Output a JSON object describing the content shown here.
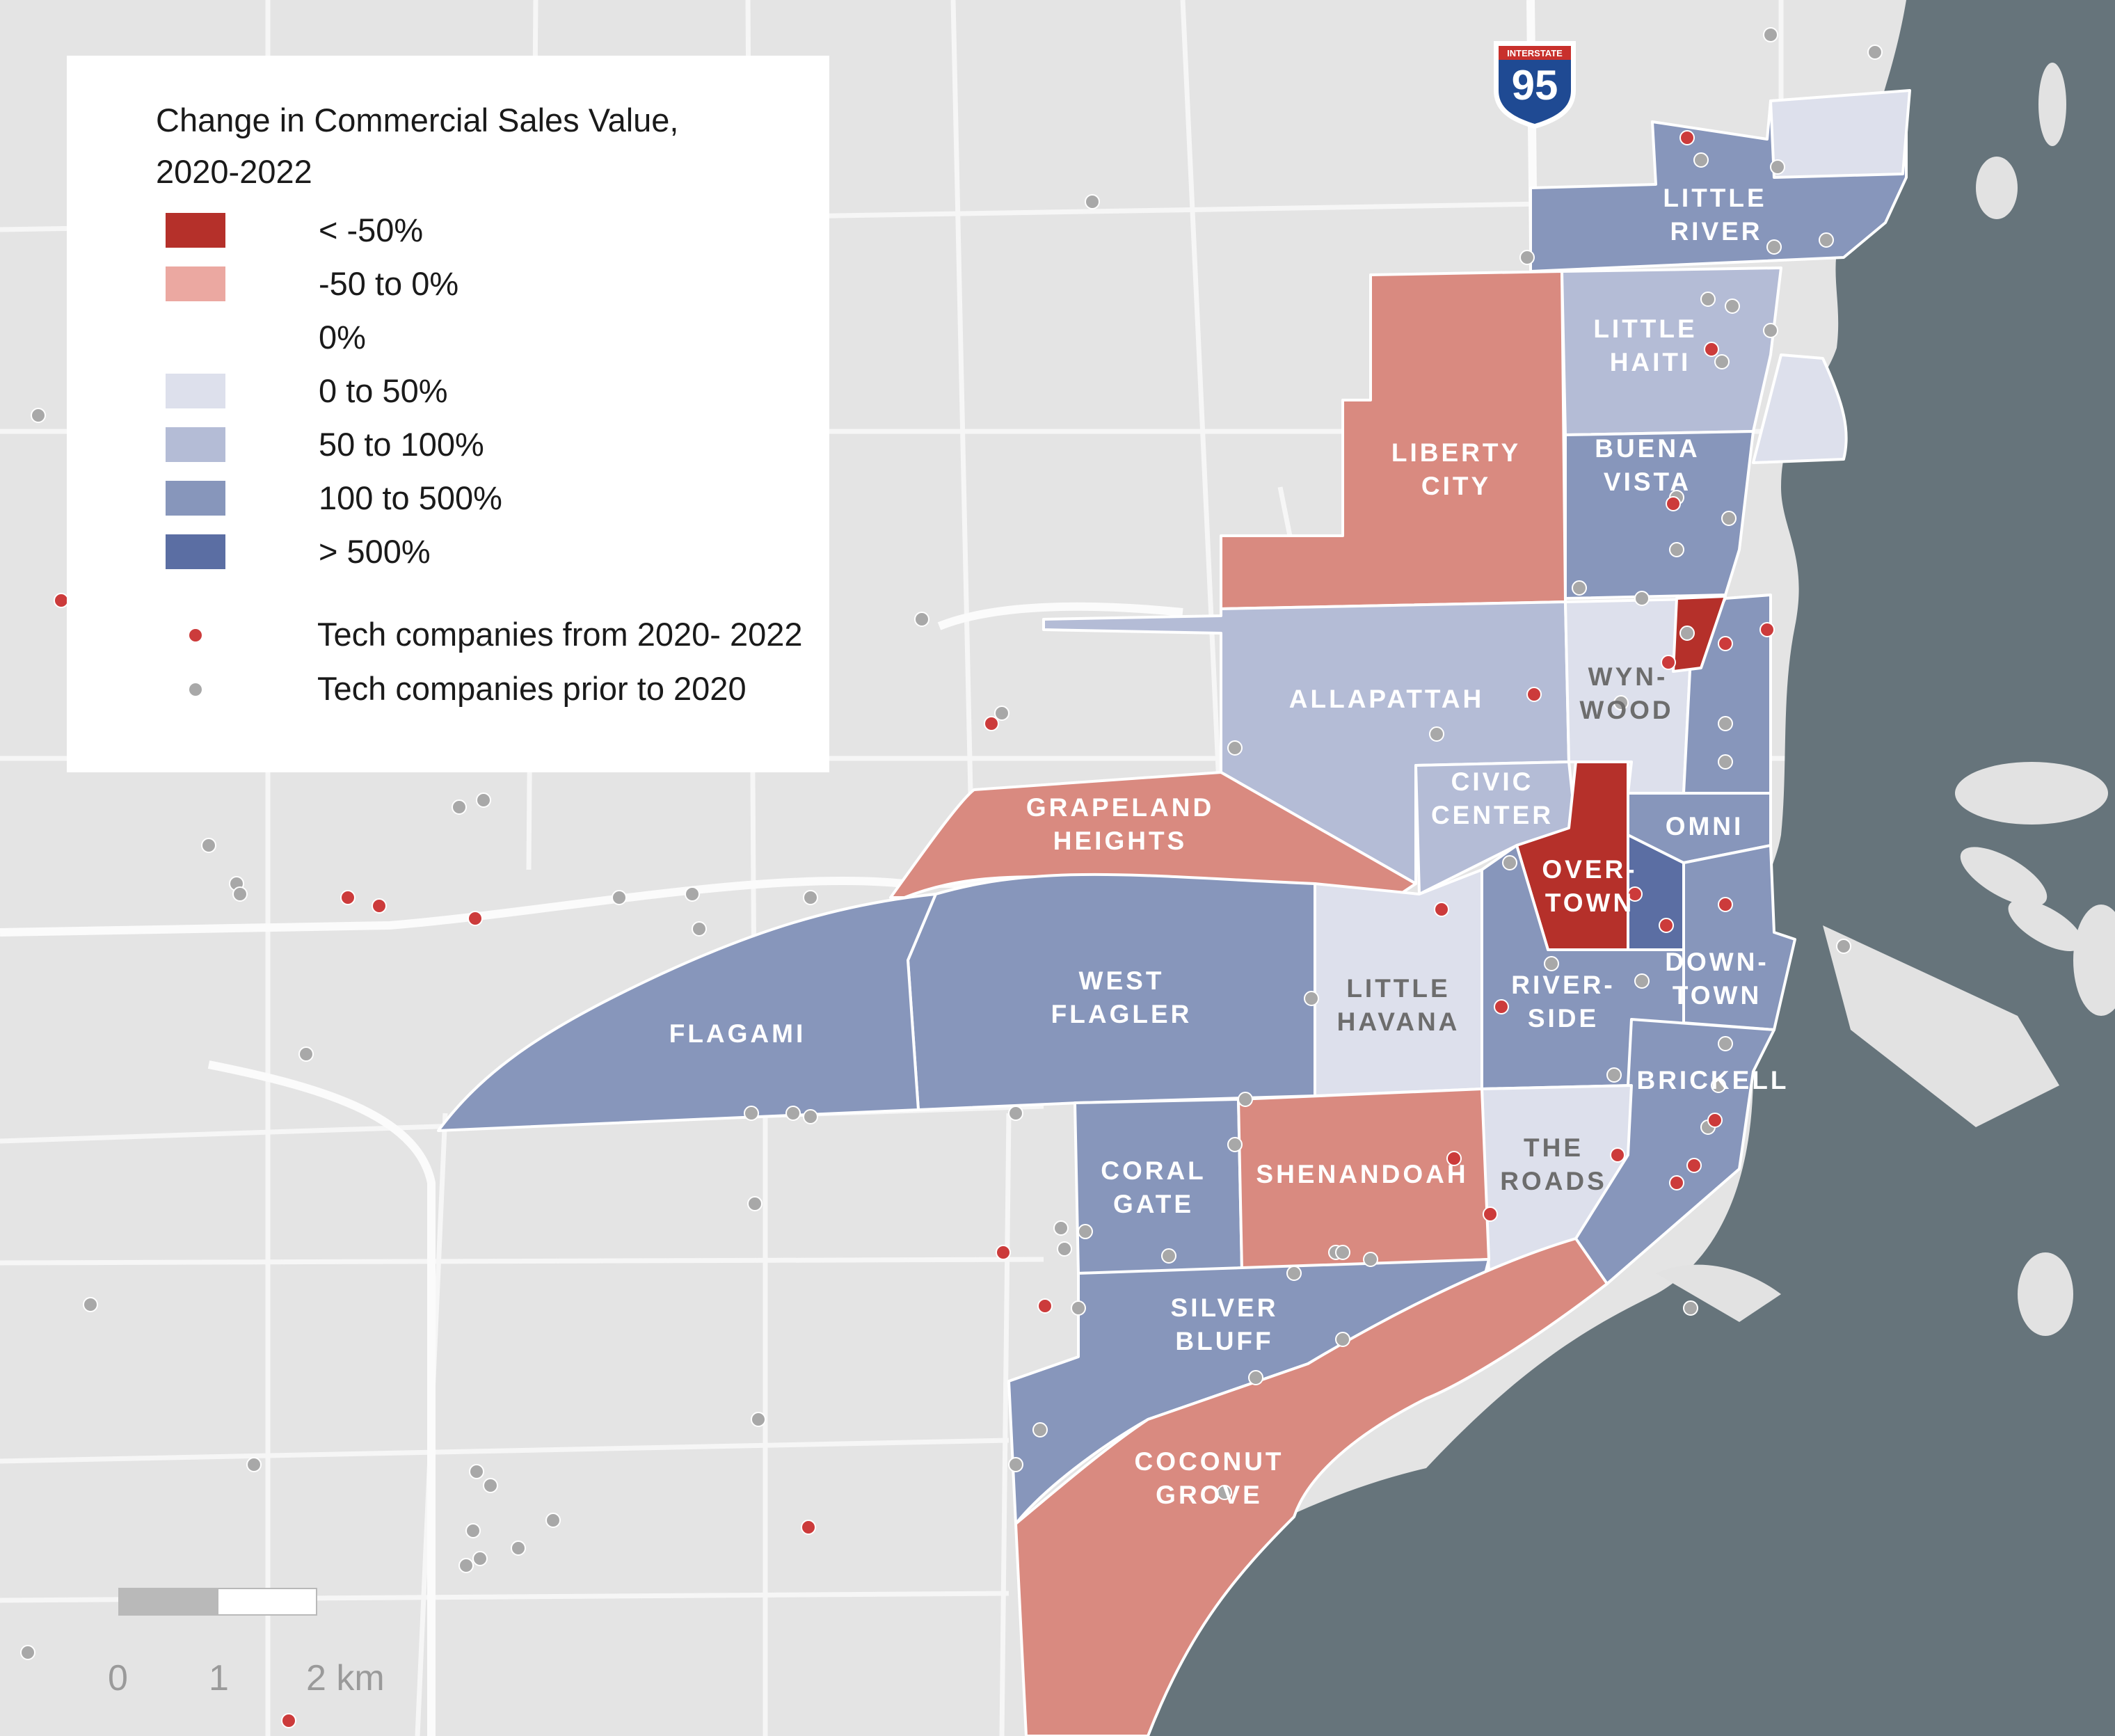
{
  "legend": {
    "title_line1": "Change in Commercial Sales Value,",
    "title_line2": "2020-2022",
    "classes": [
      {
        "label": "< -50%",
        "color": "#b5302a"
      },
      {
        "label": "-50 to 0%",
        "color": "#eba8a1"
      },
      {
        "label": "0%",
        "color": "#ffffff"
      },
      {
        "label": "0 to 50%",
        "color": "#dde0ec"
      },
      {
        "label": "50 to 100%",
        "color": "#b4bcd6"
      },
      {
        "label": "100 to 500%",
        "color": "#8796bb"
      },
      {
        "label": "> 500%",
        "color": "#5b6ea3"
      }
    ],
    "points": [
      {
        "label": "Tech companies from 2020- 2022",
        "color": "#cc3b3b"
      },
      {
        "label": "Tech companies prior to 2020",
        "color": "#a8a8a8"
      }
    ]
  },
  "shield": {
    "top_text": "INTERSTATE",
    "number": "95"
  },
  "scale": {
    "ticks": [
      "0",
      "1",
      "2 km"
    ]
  },
  "neighborhoods": [
    {
      "name": "little-river",
      "lines": [
        "LITTLE",
        "RIVER"
      ],
      "class": "100 to 500%"
    },
    {
      "name": "little-haiti",
      "lines": [
        "LITTLE",
        "HAITI"
      ],
      "class": "50 to 100%"
    },
    {
      "name": "liberty-city",
      "lines": [
        "LIBERTY",
        "CITY"
      ],
      "class": "-50 to 0%"
    },
    {
      "name": "buena-vista",
      "lines": [
        "BUENA",
        "VISTA"
      ],
      "class": "100 to 500%"
    },
    {
      "name": "allapattah",
      "lines": [
        "ALLAPATTAH"
      ],
      "class": "50 to 100%"
    },
    {
      "name": "wynwood",
      "lines": [
        "WYN-",
        "WOOD"
      ],
      "class": "0 to 50%"
    },
    {
      "name": "civic-center",
      "lines": [
        "CIVIC",
        "CENTER"
      ],
      "class": "50 to 100%"
    },
    {
      "name": "omni",
      "lines": [
        "OMNI"
      ],
      "class": "100 to 500%"
    },
    {
      "name": "grapeland-heights",
      "lines": [
        "GRAPELAND",
        "HEIGHTS"
      ],
      "class": "-50 to 0%"
    },
    {
      "name": "overtown",
      "lines": [
        "OVER-",
        "TOWN"
      ],
      "class": "< -50%"
    },
    {
      "name": "west-flagler",
      "lines": [
        "WEST",
        "FLAGLER"
      ],
      "class": "100 to 500%"
    },
    {
      "name": "little-havana",
      "lines": [
        "LITTLE",
        "HAVANA"
      ],
      "class": "0 to 50%"
    },
    {
      "name": "riverside",
      "lines": [
        "RIVER-",
        "SIDE"
      ],
      "class": "100 to 500%"
    },
    {
      "name": "downtown",
      "lines": [
        "DOWN-",
        "TOWN"
      ],
      "class": "100 to 500%"
    },
    {
      "name": "flagami",
      "lines": [
        "FLAGAMI"
      ],
      "class": "100 to 500%"
    },
    {
      "name": "brickell",
      "lines": [
        "BRICKELL"
      ],
      "class": "100 to 500%"
    },
    {
      "name": "coral-gate",
      "lines": [
        "CORAL",
        "GATE"
      ],
      "class": "100 to 500%"
    },
    {
      "name": "shenandoah",
      "lines": [
        "SHENANDOAH"
      ],
      "class": "-50 to 0%"
    },
    {
      "name": "the-roads",
      "lines": [
        "THE",
        "ROADS"
      ],
      "class": "0 to 50%"
    },
    {
      "name": "silver-bluff",
      "lines": [
        "SILVER",
        "BLUFF"
      ],
      "class": "100 to 500%"
    },
    {
      "name": "coconut-grove",
      "lines": [
        "COCONUT",
        "GROVE"
      ],
      "class": "-50 to 0%"
    }
  ]
}
